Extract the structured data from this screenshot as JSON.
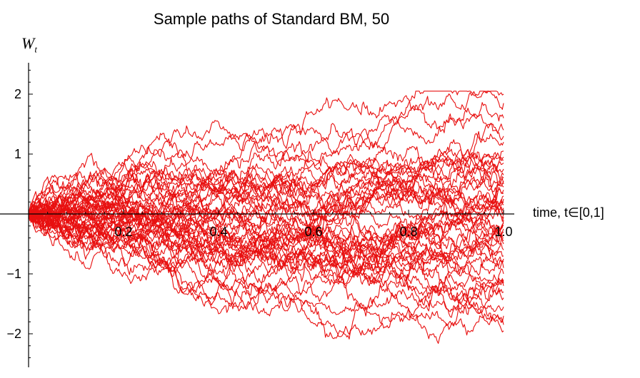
{
  "chart_data": {
    "type": "line",
    "title": "Sample paths of Standard BM, 50",
    "ylabel": "W",
    "ylabel_sub": "t",
    "xlabel": "time, t∈[0,1]",
    "xlim": [
      0,
      1
    ],
    "ylim": [
      -2.4,
      2.5
    ],
    "x_ticks": [
      0.2,
      0.4,
      0.6,
      0.8,
      1.0
    ],
    "x_tick_labels": [
      "0.2",
      "0.4",
      "0.6",
      "0.8",
      "1.0"
    ],
    "y_ticks": [
      -2,
      -1,
      1,
      2
    ],
    "y_tick_labels": [
      "−2",
      "−1",
      "1",
      "2"
    ],
    "grid": false,
    "line_color": "#e81010",
    "num_paths": 50,
    "steps": 400,
    "path_endpoints": [
      2.0,
      1.85,
      1.6,
      1.4,
      1.2,
      1.05,
      0.95,
      0.85,
      0.75,
      0.65,
      0.55,
      0.5,
      0.45,
      0.35,
      0.3,
      0.25,
      0.2,
      0.15,
      0.1,
      0.05,
      0.0,
      -0.05,
      -0.1,
      -0.2,
      -0.25,
      -0.3,
      -0.4,
      -0.45,
      -0.5,
      -0.6,
      -0.7,
      -0.8,
      -0.9,
      -1.0,
      -1.1,
      -1.2,
      -1.3,
      -1.4,
      -1.55,
      -1.7,
      -1.85,
      -1.95,
      0.6,
      -0.35,
      1.3,
      -0.75,
      0.4,
      -1.15,
      0.9,
      -0.15
    ]
  }
}
